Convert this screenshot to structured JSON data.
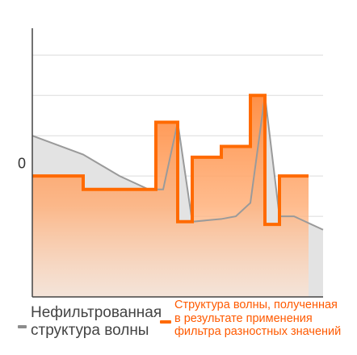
{
  "chart_data": {
    "type": "line",
    "title": "",
    "xlabel": "",
    "ylabel": "",
    "y_tick_labels": [
      {
        "value": 0,
        "label": "0"
      }
    ],
    "x": [
      0,
      1,
      2,
      3,
      4,
      5,
      6,
      7,
      8,
      9,
      10,
      11,
      12,
      13,
      14,
      15,
      16,
      17,
      18,
      19,
      20
    ],
    "xlim": [
      0,
      20
    ],
    "ylim": [
      -5,
      5
    ],
    "grid": true,
    "legend_position": "bottom",
    "series": [
      {
        "name": "Нефильтрованная структура волны",
        "color": "#9a9a9a",
        "fill": "#e3e3e3",
        "step": false,
        "points": [
          [
            0,
            1
          ],
          [
            3.5,
            0.3
          ],
          [
            6,
            -0.5
          ],
          [
            8,
            -1
          ],
          [
            9,
            -1
          ],
          [
            10,
            1.5
          ],
          [
            11,
            -2.2
          ],
          [
            13,
            -2.1
          ],
          [
            14,
            -2
          ],
          [
            15,
            -1.5
          ],
          [
            16,
            2.5
          ],
          [
            17,
            -2
          ],
          [
            18,
            -2
          ],
          [
            20,
            -2.5
          ]
        ]
      },
      {
        "name": "Структура волны, полученная\nв результате применения\nфильтра разностных значений",
        "color": "#ff6a00",
        "fill": "#ff9a55",
        "step": true,
        "points": [
          [
            0,
            -0.5
          ],
          [
            3.5,
            -0.5
          ],
          [
            3.5,
            -1
          ],
          [
            8.5,
            -1
          ],
          [
            8.5,
            1.5
          ],
          [
            10,
            1.5
          ],
          [
            10,
            -2.2
          ],
          [
            11,
            -2.2
          ],
          [
            11,
            0.2
          ],
          [
            13,
            0.2
          ],
          [
            13,
            0.6
          ],
          [
            15,
            0.6
          ],
          [
            15,
            2.5
          ],
          [
            16,
            2.5
          ],
          [
            16,
            -2.3
          ],
          [
            17,
            -2.3
          ],
          [
            17,
            -0.5
          ],
          [
            19,
            -0.5
          ]
        ]
      }
    ]
  }
}
